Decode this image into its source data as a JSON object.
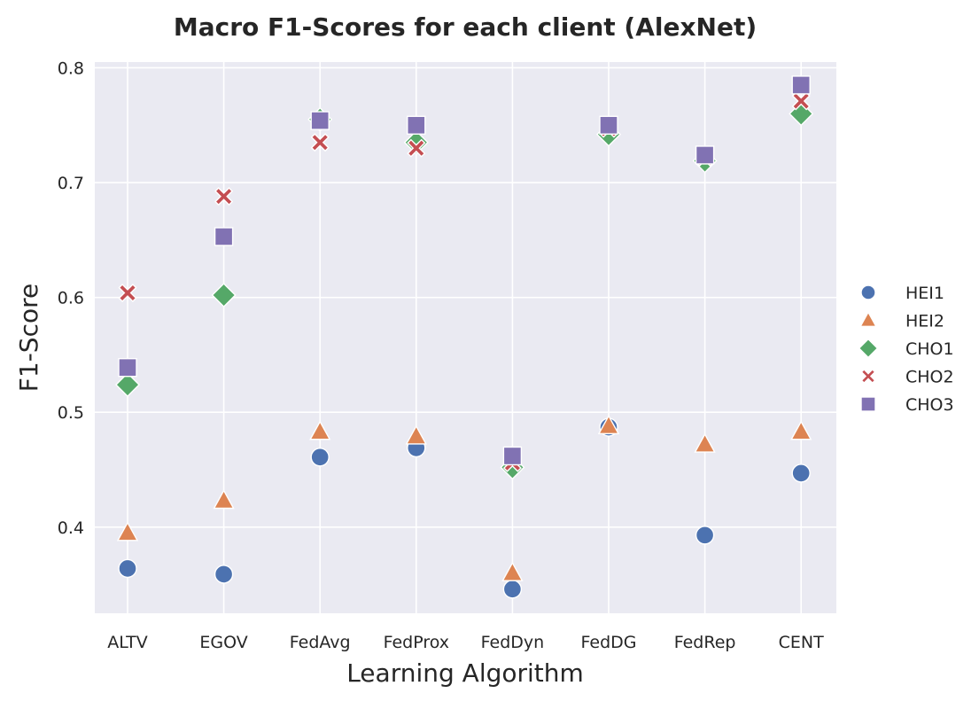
{
  "chart_data": {
    "type": "scatter",
    "title": "Macro F1-Scores for each client (AlexNet)",
    "xlabel": "Learning Algorithm",
    "ylabel": "F1-Score",
    "categories": [
      "ALTV",
      "EGOV",
      "FedAvg",
      "FedProx",
      "FedDyn",
      "FedDG",
      "FedRep",
      "CENT"
    ],
    "yticks": [
      "0.4",
      "0.5",
      "0.6",
      "0.7",
      "0.8"
    ],
    "ylim": [
      0.325,
      0.805
    ],
    "grid": true,
    "legend_position": "right",
    "series": [
      {
        "name": "HEI1",
        "marker": "circle",
        "color": "#4c72b0",
        "values": [
          0.364,
          0.359,
          0.461,
          0.469,
          0.346,
          0.487,
          0.393,
          0.447
        ]
      },
      {
        "name": "HEI2",
        "marker": "triangle",
        "color": "#dd8452",
        "values": [
          0.395,
          0.423,
          0.483,
          0.479,
          0.36,
          0.488,
          0.472,
          0.483
        ]
      },
      {
        "name": "CHO1",
        "marker": "diamond",
        "color": "#55a868",
        "values": [
          0.524,
          0.602,
          0.755,
          0.735,
          0.452,
          0.742,
          0.719,
          0.76
        ]
      },
      {
        "name": "CHO2",
        "marker": "x",
        "color": "#c44e52",
        "values": [
          0.604,
          0.688,
          0.735,
          0.73,
          0.456,
          0.747,
          0.722,
          0.771
        ]
      },
      {
        "name": "CHO3",
        "marker": "square",
        "color": "#8172b3",
        "values": [
          0.539,
          0.653,
          0.754,
          0.75,
          0.462,
          0.75,
          0.724,
          0.785
        ]
      }
    ]
  }
}
